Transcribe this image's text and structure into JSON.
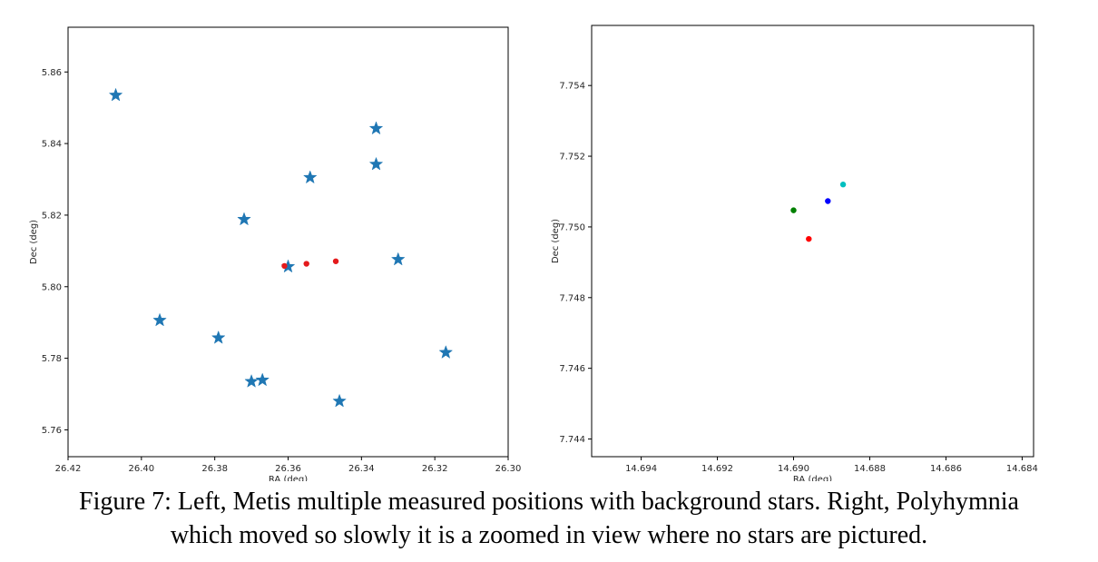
{
  "caption": {
    "line1": "Figure 7: Left, Metis multiple measured positions with background stars. Right, Polyhymnia",
    "line2": "which moved so slowly it is a zoomed in view where no stars are pictured."
  },
  "chart_data": [
    {
      "type": "scatter",
      "xlabel": "RA (deg)",
      "ylabel": "Dec (deg)",
      "x_inverted": true,
      "xlim": [
        26.42,
        26.3
      ],
      "ylim": [
        5.7525,
        5.8725
      ],
      "xticks": [
        26.42,
        26.4,
        26.38,
        26.36,
        26.34,
        26.32,
        26.3
      ],
      "xtick_labels": [
        "26.42",
        "26.40",
        "26.38",
        "26.36",
        "26.34",
        "26.32",
        "26.30"
      ],
      "yticks": [
        5.76,
        5.78,
        5.8,
        5.82,
        5.84,
        5.86
      ],
      "ytick_labels": [
        "5.76",
        "5.78",
        "5.80",
        "5.82",
        "5.84",
        "5.86"
      ],
      "grid": false,
      "series": [
        {
          "marker": "star",
          "color": "#1f77b4",
          "points": [
            {
              "x": 26.407,
              "y": 5.8535
            },
            {
              "x": 26.336,
              "y": 5.8442
            },
            {
              "x": 26.336,
              "y": 5.8342
            },
            {
              "x": 26.354,
              "y": 5.8305
            },
            {
              "x": 26.372,
              "y": 5.8188
            },
            {
              "x": 26.36,
              "y": 5.8056
            },
            {
              "x": 26.33,
              "y": 5.8076
            },
            {
              "x": 26.395,
              "y": 5.7906
            },
            {
              "x": 26.379,
              "y": 5.7857
            },
            {
              "x": 26.37,
              "y": 5.7735
            },
            {
              "x": 26.367,
              "y": 5.7739
            },
            {
              "x": 26.346,
              "y": 5.768
            },
            {
              "x": 26.317,
              "y": 5.7816
            }
          ]
        },
        {
          "marker": "dot",
          "color": "#e41a1c",
          "points": [
            {
              "x": 26.361,
              "y": 5.8058
            },
            {
              "x": 26.355,
              "y": 5.8064
            },
            {
              "x": 26.347,
              "y": 5.8071
            }
          ]
        }
      ]
    },
    {
      "type": "scatter",
      "xlabel": "RA (deg)",
      "ylabel": "Dec (deg)",
      "x_inverted": true,
      "xlim": [
        14.6953,
        14.6837
      ],
      "ylim": [
        7.7435,
        7.7557
      ],
      "xticks": [
        14.694,
        14.692,
        14.69,
        14.688,
        14.686,
        14.684
      ],
      "xtick_labels": [
        "14.694",
        "14.692",
        "14.690",
        "14.688",
        "14.686",
        "14.684"
      ],
      "yticks": [
        7.744,
        7.746,
        7.748,
        7.75,
        7.752,
        7.754
      ],
      "ytick_labels": [
        "7.744",
        "7.746",
        "7.748",
        "7.750",
        "7.752",
        "7.754"
      ],
      "grid": false,
      "series": [
        {
          "marker": "dot",
          "color": "#008000",
          "points": [
            {
              "x": 14.69,
              "y": 7.75047
            }
          ]
        },
        {
          "marker": "dot",
          "color": "#ff0000",
          "points": [
            {
              "x": 14.6896,
              "y": 7.74966
            }
          ]
        },
        {
          "marker": "dot",
          "color": "#0000ff",
          "points": [
            {
              "x": 14.6891,
              "y": 7.75073
            }
          ]
        },
        {
          "marker": "dot",
          "color": "#00bfbf",
          "points": [
            {
              "x": 14.6887,
              "y": 7.7512
            }
          ]
        }
      ]
    }
  ]
}
